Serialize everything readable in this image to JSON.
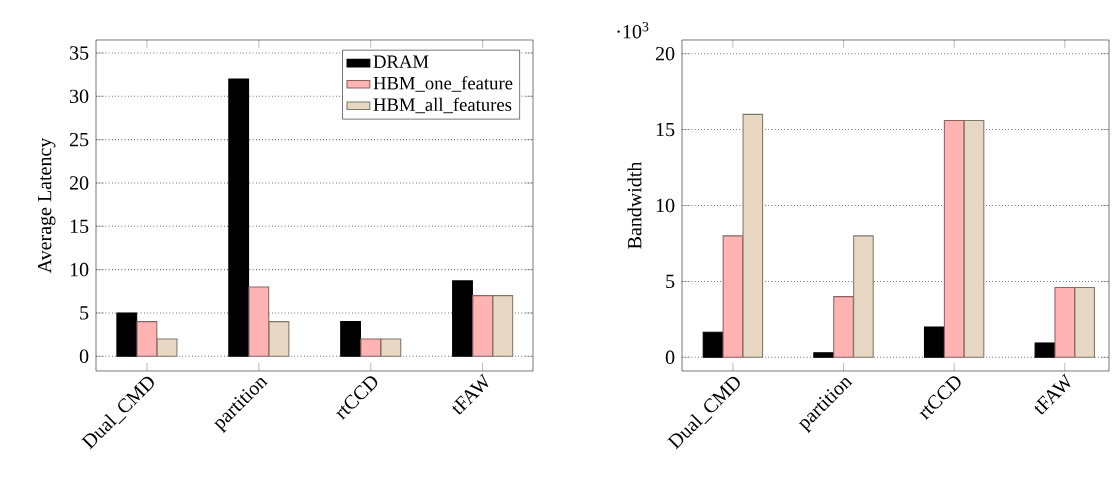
{
  "chart_data": [
    {
      "type": "bar",
      "ylabel": "Average Latency",
      "categories": [
        "Dual_CMD",
        "partition",
        "rtCCD",
        "tFAW"
      ],
      "series": [
        {
          "name": "DRAM",
          "color": "#000000",
          "values": [
            5,
            32,
            4,
            8.7
          ]
        },
        {
          "name": "HBM_one_feature",
          "color": "#ffb3b3",
          "values": [
            4,
            8,
            2,
            7
          ]
        },
        {
          "name": "HBM_all_features",
          "color": "#e8d8c3",
          "values": [
            2,
            4,
            2,
            7
          ]
        }
      ],
      "ylim": [
        -1.7,
        36.5
      ],
      "yticks": [
        0,
        5,
        10,
        15,
        20,
        25,
        30,
        35
      ],
      "grid": "y",
      "legend": "top right"
    },
    {
      "type": "bar",
      "ylabel": "Bandwidth",
      "annotations": [
        "·10$^{3}$"
      ],
      "categories": [
        "Dual_CMD",
        "partition",
        "rtCCD",
        "tFAW"
      ],
      "series": [
        {
          "color": "#000000",
          "values": [
            1.65,
            0.3,
            2,
            0.95
          ]
        },
        {
          "color": "#ffb3b3",
          "values": [
            8,
            4,
            15.6,
            4.6
          ]
        },
        {
          "color": "#e8d8c3",
          "values": [
            16,
            8,
            15.6,
            4.6
          ]
        }
      ],
      "ylim": [
        -0.9,
        20.9
      ],
      "yticks": [
        0,
        5,
        10,
        15,
        20
      ],
      "grid": "y"
    }
  ]
}
